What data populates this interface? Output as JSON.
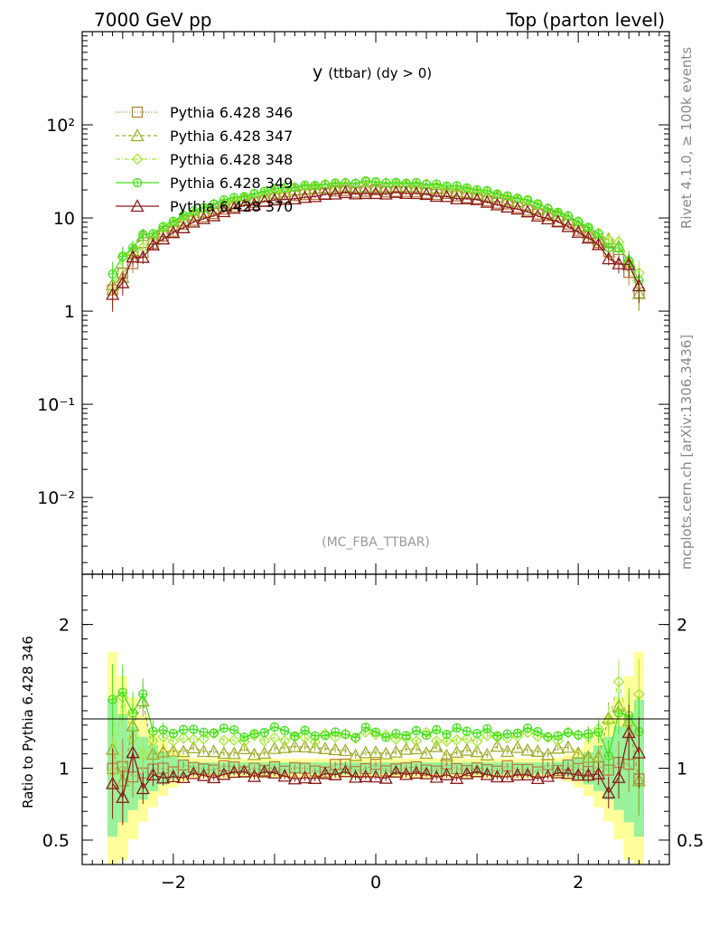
{
  "header": {
    "left": "7000 GeV pp",
    "right": "Top (parton level)"
  },
  "side_labels": {
    "rivet": "Rivet 4.1.0, ≥ 100k events",
    "mcplots": "mcplots.cern.ch [arXiv:1306.3436]"
  },
  "chart_data": {
    "type": "line",
    "title": "y (ttbar) (dy > 0)",
    "title_main": "y",
    "title_sub": "(ttbar) (dy > 0)",
    "watermark": "(MC_FBA_TTBAR)",
    "xlabel": "",
    "ylabel": "",
    "xlim": [
      -2.9,
      2.9
    ],
    "ylim_log": [
      0.0015,
      1000
    ],
    "ratio_ylabel": "Ratio to Pythia 6.428 346",
    "ratio_ylim": [
      0.33,
      2.35
    ],
    "x_ticks": [
      "−2",
      "0",
      "2"
    ],
    "x_tick_values": [
      -2,
      0,
      2
    ],
    "y_ticks": [
      "10²",
      "10",
      "1",
      "10⁻¹",
      "10⁻²"
    ],
    "y_tick_values": [
      100,
      10,
      1,
      0.1,
      0.01
    ],
    "ratio_ticks": [
      "2",
      "1",
      "0.5"
    ],
    "ratio_tick_values": [
      2,
      1,
      0.5
    ],
    "distribution": {
      "shape": "max(0, 1 - (x/2.9)^2)^1.5",
      "note": "smooth bell-shaped rapidity distribution, peak near y=0"
    },
    "series": [
      {
        "name": "Pythia 6.428 346",
        "color": "#b5803f",
        "marker": "square",
        "dash": "1,2",
        "peak": 19.5,
        "ratio": 1.0
      },
      {
        "name": "Pythia 6.428 347",
        "color": "#9fac2a",
        "marker": "triangle",
        "dash": "4,3",
        "peak": 21.5,
        "ratio": 1.12
      },
      {
        "name": "Pythia 6.428 348",
        "color": "#a8e83a",
        "marker": "diamond",
        "dash": "5,2,1,2",
        "peak": 24.0,
        "ratio": 1.22
      },
      {
        "name": "Pythia 6.428 349",
        "color": "#44e01e",
        "marker": "circle",
        "dash": "",
        "peak": 24.5,
        "ratio": 1.25
      },
      {
        "name": "Pythia 6.428 370",
        "color": "#8b1a1a",
        "marker": "triangle",
        "dash": "",
        "peak": 18.5,
        "ratio": 0.95
      }
    ],
    "bands": {
      "yellow_color": "#ffff99",
      "green_color": "#99f29a"
    }
  }
}
